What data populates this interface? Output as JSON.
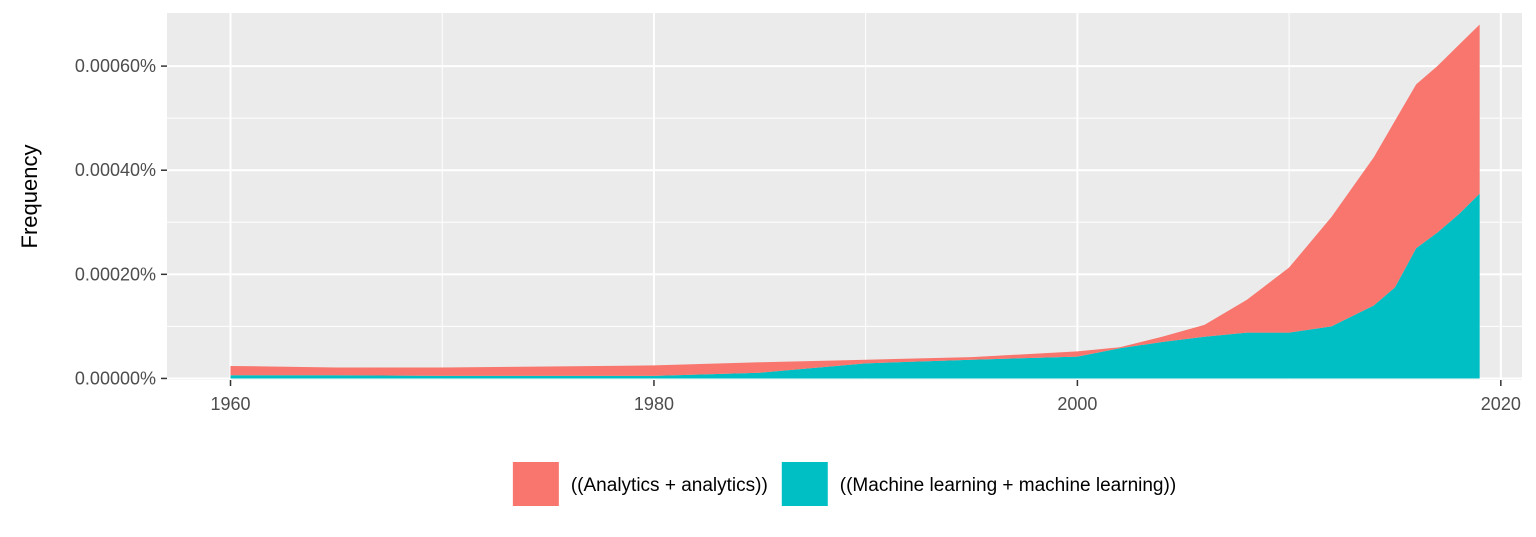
{
  "chart_data": {
    "type": "area",
    "stacked": true,
    "title": "",
    "xlabel": "",
    "ylabel": "Frequency",
    "xlim": [
      1957,
      2021
    ],
    "ylim": [
      -3e-06,
      0.000702
    ],
    "x_ticks": [
      1960,
      1980,
      2000,
      2020
    ],
    "x_tick_labels": [
      "1960",
      "1980",
      "2000",
      "2020"
    ],
    "y_ticks": [
      0,
      0.0002,
      0.0004,
      0.0006
    ],
    "y_tick_labels": [
      "0.00000%",
      "0.00020%",
      "0.00040%",
      "0.00060%"
    ],
    "grid": true,
    "legend_position": "bottom",
    "colors": {
      "panel": "#ebebeb",
      "grid": "#ffffff"
    },
    "x": [
      1960,
      1965,
      1970,
      1975,
      1980,
      1985,
      1990,
      1995,
      2000,
      2002,
      2004,
      2006,
      2008,
      2010,
      2012,
      2014,
      2015,
      2016,
      2017,
      2018,
      2019
    ],
    "series": [
      {
        "name": "((Machine learning + machine learning))",
        "color": "#00bfc4",
        "values": [
          6e-06,
          6e-06,
          5e-06,
          5e-06,
          5e-06,
          1.1e-05,
          2.9e-05,
          3.6e-05,
          4.2e-05,
          5.8e-05,
          7e-05,
          8e-05,
          8.8e-05,
          8.8e-05,
          0.0001,
          0.00014,
          0.000175,
          0.00025,
          0.00028,
          0.000315,
          0.000355
        ]
      },
      {
        "name": "((Analytics + analytics))",
        "color": "#f8766d",
        "values": [
          1.8e-05,
          1.5e-05,
          1.6e-05,
          1.8e-05,
          2e-05,
          2e-05,
          7e-06,
          5e-06,
          1e-05,
          2e-06,
          1e-05,
          2.3e-05,
          6.3e-05,
          0.000125,
          0.00021,
          0.000285,
          0.00032,
          0.000315,
          0.00032,
          0.000325,
          0.000325
        ]
      }
    ],
    "legend": [
      {
        "label": "((Analytics + analytics))",
        "color": "#f8766d"
      },
      {
        "label": "((Machine learning + machine learning))",
        "color": "#00bfc4"
      }
    ]
  }
}
